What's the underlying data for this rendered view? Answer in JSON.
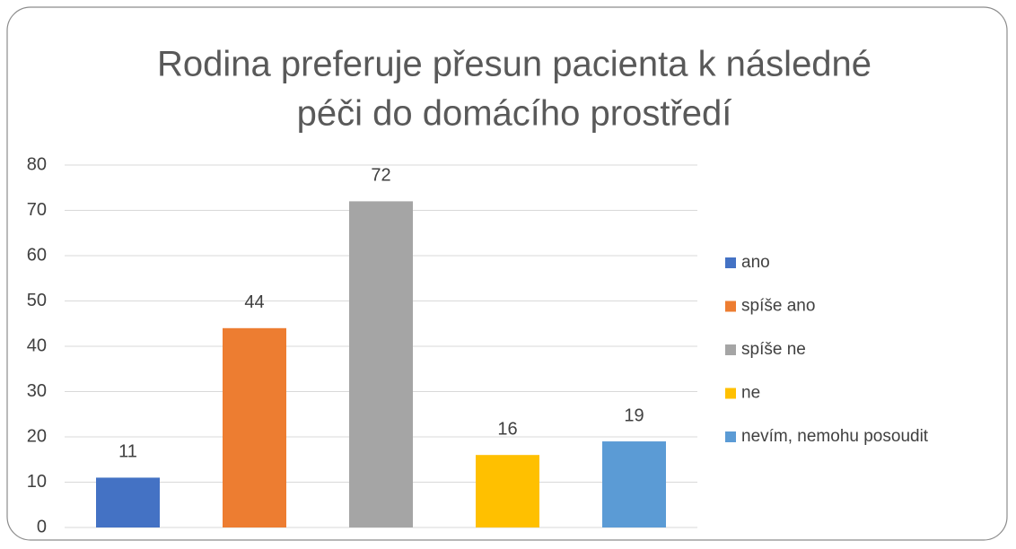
{
  "chart_data": {
    "type": "bar",
    "title": [
      "Rodina preferuje přesun pacienta k následné",
      "péči do domácího prostředí"
    ],
    "series": [
      {
        "name": "ano",
        "color": "#4472c4",
        "values": [
          11
        ]
      },
      {
        "name": "spíše ano",
        "color": "#ed7d31",
        "values": [
          44
        ]
      },
      {
        "name": "spíše ne",
        "color": "#a5a5a5",
        "values": [
          72
        ]
      },
      {
        "name": "ne",
        "color": "#ffc000",
        "values": [
          16
        ]
      },
      {
        "name": "nevím, nemohu posoudit",
        "color": "#5b9bd5",
        "values": [
          19
        ]
      }
    ],
    "ylim": [
      0,
      80
    ],
    "yticks": [
      0,
      10,
      20,
      30,
      40,
      50,
      60,
      70,
      80
    ],
    "grid": true,
    "legend": "right"
  }
}
